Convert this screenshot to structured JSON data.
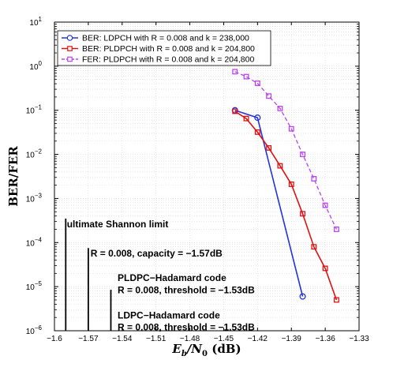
{
  "chart_data": {
    "type": "line",
    "xlabel": "Eb/N0 (dB)",
    "ylabel": "BER/FER",
    "xlim": [
      -1.6,
      -1.33
    ],
    "ylim_log10": [
      -6,
      1
    ],
    "yscale": "log",
    "grid": true,
    "legend_position": "top-left",
    "x_ticks": [
      -1.6,
      -1.57,
      -1.54,
      -1.51,
      -1.48,
      -1.45,
      -1.42,
      -1.39,
      -1.36,
      -1.33
    ],
    "x_tick_labels": [
      "−1.6",
      "−1.57",
      "−1.54",
      "−1.51",
      "−1.48",
      "−1.45",
      "−1.42",
      "−1.39",
      "−1.36",
      "−1.33"
    ],
    "y_tick_exponents": [
      -6,
      -5,
      -4,
      -3,
      -2,
      -1,
      0,
      1
    ],
    "y_tick_base": "10",
    "series": [
      {
        "name": "BER: LDPCH with R = 0.008 and k = 238,000",
        "color": "#2233dd",
        "marker": "circle",
        "dash": false,
        "x": [
          -1.44,
          -1.42,
          -1.38
        ],
        "y": [
          0.1,
          0.068,
          6e-06
        ]
      },
      {
        "name": "BER: PLDPCH with R = 0.008 and k = 204,800",
        "color": "#e01010",
        "marker": "square",
        "dash": false,
        "x": [
          -1.44,
          -1.43,
          -1.42,
          -1.41,
          -1.4,
          -1.39,
          -1.38,
          -1.37,
          -1.36,
          -1.35
        ],
        "y": [
          0.095,
          0.065,
          0.032,
          0.014,
          0.0055,
          0.0021,
          0.00045,
          8e-05,
          2.6e-05,
          5e-06
        ]
      },
      {
        "name": "FER: PLDPCH with R = 0.008 and k = 204,800",
        "color": "#bb44ee",
        "marker": "square",
        "dash": true,
        "x": [
          -1.44,
          -1.43,
          -1.42,
          -1.41,
          -1.4,
          -1.39,
          -1.38,
          -1.37,
          -1.36,
          -1.35
        ],
        "y": [
          0.75,
          0.58,
          0.41,
          0.21,
          0.11,
          0.038,
          0.01,
          0.0028,
          0.0007,
          0.0002
        ]
      }
    ],
    "limit_lines": [
      {
        "x": -1.59,
        "y_top": 0.00035
      },
      {
        "x": -1.57,
        "y_top": 7.5e-05
      },
      {
        "x": -1.55,
        "y_top": 8.5e-06
      }
    ],
    "annotations": [
      {
        "text": "ultimate Shannon limit",
        "x": -1.589,
        "y": 0.00022
      },
      {
        "text": "R = 0.008, capacity = −1.57dB",
        "x": -1.568,
        "y": 4.8e-05
      },
      {
        "text": "PLDPC−Hadamard code",
        "x": -1.544,
        "y": 1.35e-05
      },
      {
        "text": "R = 0.008, threshold = −1.53dB",
        "x": -1.544,
        "y": 7.1e-06
      },
      {
        "text": "LDPC−Hadamard code",
        "x": -1.544,
        "y": 1.9e-06
      },
      {
        "text": "R = 0.008, threshold = −1.53dB",
        "x": -1.544,
        "y": 1.03e-06
      }
    ]
  }
}
